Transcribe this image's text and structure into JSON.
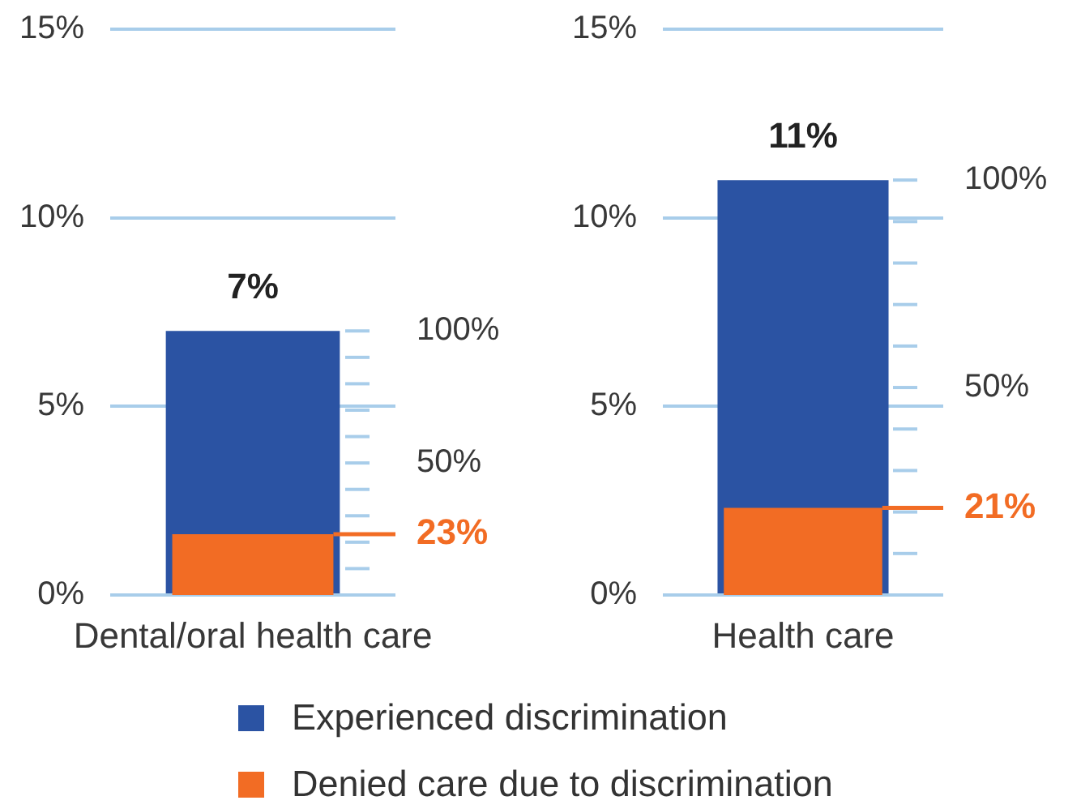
{
  "chart_data": [
    {
      "type": "bar",
      "categories": [
        "Dental/oral health care"
      ],
      "series": [
        {
          "name": "Experienced discrimination",
          "color": "#2b53a3",
          "values": [
            7
          ],
          "value_labels": [
            "7%"
          ]
        },
        {
          "name": "Denied care due to discrimination",
          "color": "#f26c24",
          "values": [
            23
          ],
          "axis": "y2"
        }
      ],
      "ylim": [
        0,
        15
      ],
      "yticks": [
        {
          "value": 0,
          "label": "0%"
        },
        {
          "value": 5,
          "label": "5%"
        },
        {
          "value": 10,
          "label": "10%"
        },
        {
          "value": 15,
          "label": "15%"
        }
      ],
      "y2lim": [
        0,
        100
      ],
      "y2ticks": [
        {
          "value": 0,
          "label": null
        },
        {
          "value": 10,
          "label": null
        },
        {
          "value": 20,
          "label": null
        },
        {
          "value": 30,
          "label": null
        },
        {
          "value": 40,
          "label": null
        },
        {
          "value": 50,
          "label": "50%"
        },
        {
          "value": 60,
          "label": null
        },
        {
          "value": 70,
          "label": null
        },
        {
          "value": 80,
          "label": null
        },
        {
          "value": 90,
          "label": null
        },
        {
          "value": 100,
          "label": "100%"
        }
      ],
      "ref_lines": [
        {
          "axis": "y2",
          "value": 23,
          "label": "23%",
          "color": "#f26c24"
        }
      ],
      "grid": "y",
      "legend": "bottom"
    },
    {
      "type": "bar",
      "categories": [
        "Health care"
      ],
      "series": [
        {
          "color": "#2b53a3",
          "values": [
            11
          ],
          "value_labels": [
            "11%"
          ]
        },
        {
          "color": "#f26c24",
          "values": [
            21
          ],
          "axis": "y2"
        }
      ],
      "ylim": [
        0,
        15
      ],
      "yticks": [
        {
          "value": 0,
          "label": "0%"
        },
        {
          "value": 5,
          "label": "5%"
        },
        {
          "value": 10,
          "label": "10%"
        },
        {
          "value": 15,
          "label": "15%"
        }
      ],
      "y2lim": [
        0,
        100
      ],
      "y2ticks": [
        {
          "value": 0,
          "label": null
        },
        {
          "value": 10,
          "label": null
        },
        {
          "value": 20,
          "label": null
        },
        {
          "value": 30,
          "label": null
        },
        {
          "value": 40,
          "label": null
        },
        {
          "value": 50,
          "label": "50%"
        },
        {
          "value": 60,
          "label": null
        },
        {
          "value": 70,
          "label": null
        },
        {
          "value": 80,
          "label": null
        },
        {
          "value": 90,
          "label": null
        },
        {
          "value": 100,
          "label": "100%"
        }
      ],
      "ref_lines": [
        {
          "axis": "y2",
          "value": 21,
          "label": "21%",
          "color": "#f26c24"
        }
      ],
      "grid": "y"
    }
  ]
}
